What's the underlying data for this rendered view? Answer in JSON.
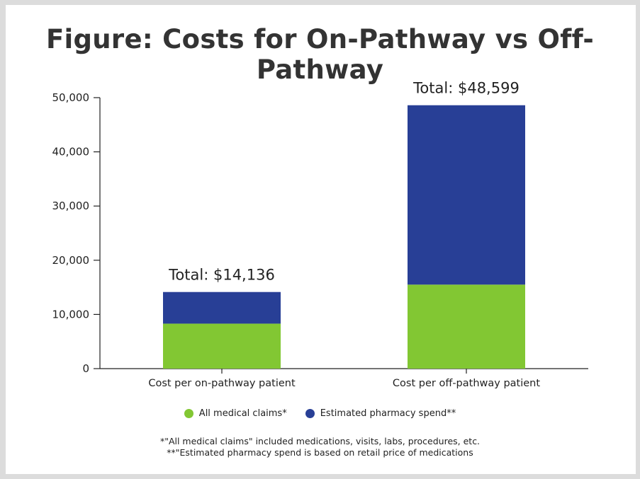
{
  "title": "Figure: Costs for On-Pathway vs Off-Pathway",
  "colors": {
    "medical": "#82c733",
    "pharmacy": "#283f96"
  },
  "chart_data": {
    "type": "bar",
    "stacked": true,
    "categories": [
      "Cost per on-pathway patient",
      "Cost per off-pathway patient"
    ],
    "series": [
      {
        "name": "All medical claims*",
        "values": [
          8300,
          15500
        ]
      },
      {
        "name": "Estimated pharmacy spend**",
        "values": [
          5836,
          33099
        ]
      }
    ],
    "totals": [
      14136,
      48599
    ],
    "total_labels": [
      "Total: $14,136",
      "Total: $48,599"
    ],
    "ylim": [
      0,
      50000
    ],
    "yticks": [
      0,
      10000,
      20000,
      30000,
      40000,
      50000
    ],
    "ytick_labels": [
      "0",
      "10,000",
      "20,000",
      "30,000",
      "40,000",
      "50,000"
    ],
    "grid": false,
    "legend_position": "bottom"
  },
  "footnotes": [
    "*\"All medical claims\" included medications, visits, labs, procedures, etc.",
    "**\"Estimated pharmacy spend is based on retail price of medications"
  ]
}
